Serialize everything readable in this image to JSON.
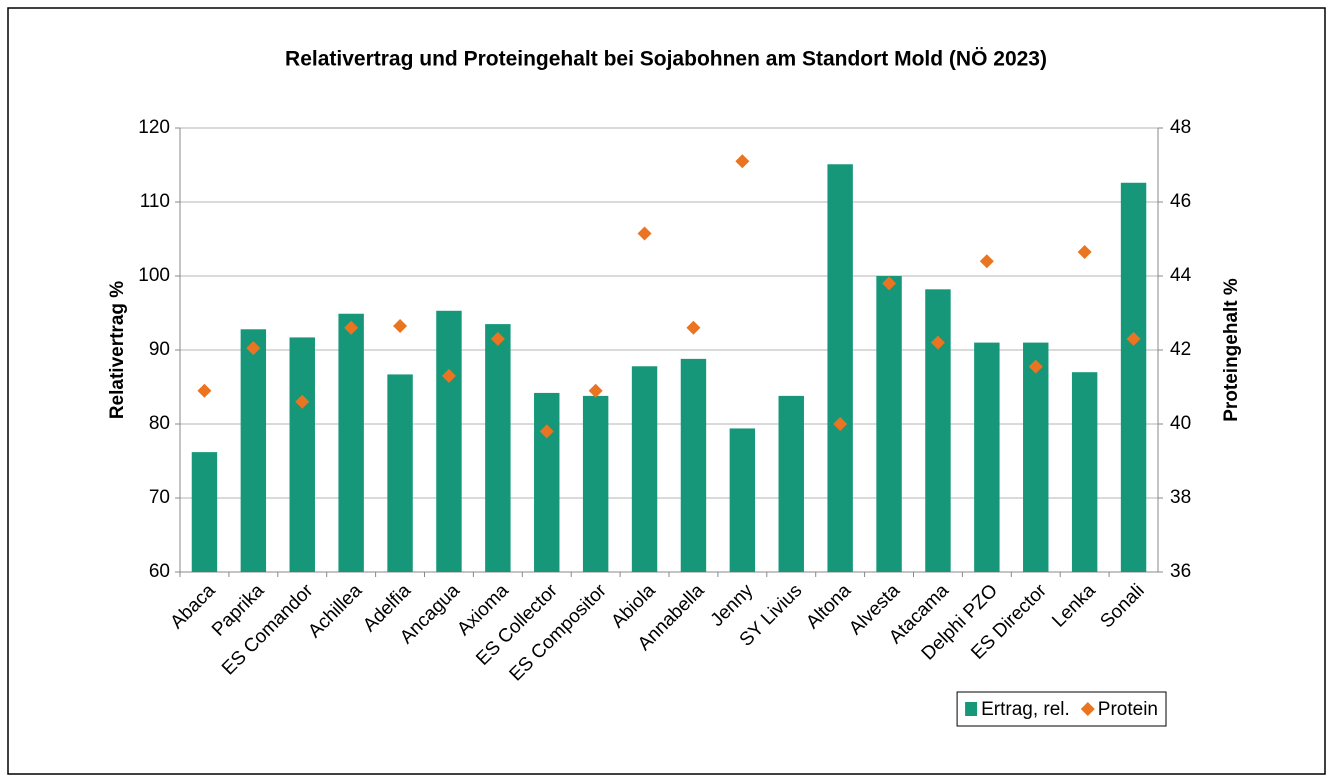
{
  "chart_data": {
    "type": "bar",
    "title": "Relativertrag und Proteingehalt bei Sojabohnen am Standort Mold (NÖ 2023)",
    "y_label": "Relativertrag %",
    "y2_label": "Proteingehalt %",
    "categories": [
      "Abaca",
      "Paprika",
      "ES Comandor",
      "Achillea",
      "Adelfia",
      "Ancagua",
      "Axioma",
      "ES Collector",
      "ES Compositor",
      "Abiola",
      "Annabella",
      "Jenny",
      "SY Livius",
      "Altona",
      "Alvesta",
      "Atacama",
      "Delphi PZO",
      "ES Director",
      "Lenka",
      "Sonali"
    ],
    "series": [
      {
        "name": "Ertrag, rel.",
        "type": "bar",
        "color": "#16977a",
        "values": [
          76.2,
          92.8,
          91.7,
          94.9,
          86.7,
          95.3,
          93.5,
          84.2,
          83.8,
          87.8,
          88.8,
          79.4,
          83.8,
          115.1,
          100,
          98.2,
          91,
          91,
          87,
          112.6
        ]
      },
      {
        "name": "Protein",
        "type": "scatter",
        "axis": "y2",
        "marker": "diamond",
        "color": "#ea7420",
        "values": [
          40.9,
          42.05,
          40.6,
          42.6,
          42.65,
          41.3,
          42.3,
          39.8,
          40.9,
          45.15,
          42.6,
          47.1,
          null,
          40.0,
          43.8,
          42.2,
          44.4,
          41.55,
          44.65,
          42.3
        ]
      }
    ],
    "ylim": [
      60,
      120
    ],
    "yticks": [
      60,
      70,
      80,
      90,
      100,
      110,
      120
    ],
    "y2lim": [
      36,
      48
    ],
    "y2ticks": [
      36,
      38,
      40,
      42,
      44,
      46,
      48
    ],
    "grid": true,
    "legend": "bottom-right"
  }
}
